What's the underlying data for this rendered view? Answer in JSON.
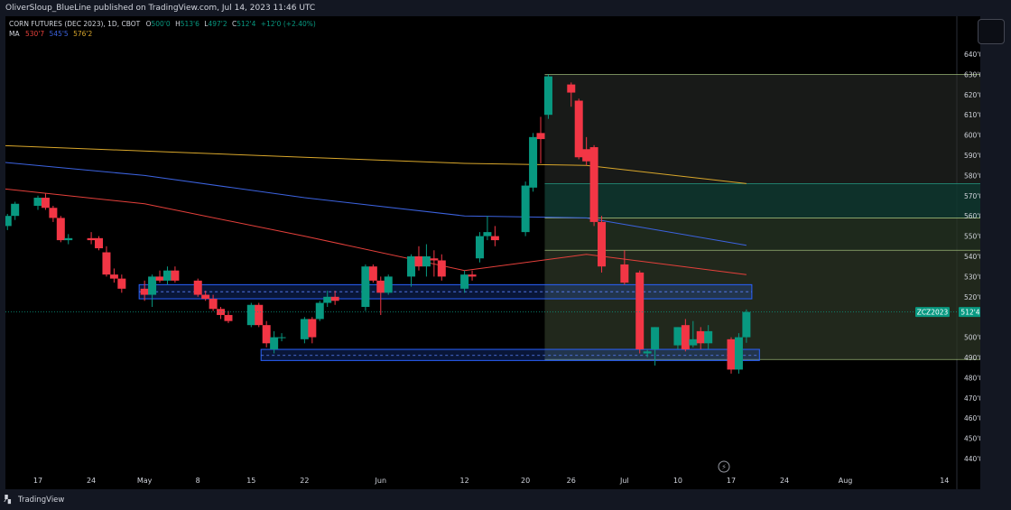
{
  "header": {
    "publisher_line": "OliverSloup_BlueLine published on TradingView.com, Jul 14, 2023 11:46 UTC"
  },
  "legend": {
    "symbol": "CORN FUTURES (DEC 2023), 1D, CBOT",
    "ohlc": {
      "open_label": "O",
      "open": "500'0",
      "high_label": "H",
      "high": "513'6",
      "low_label": "L",
      "low": "497'2",
      "close_label": "C",
      "close": "512'4",
      "change": "+12'0 (+2.40%)"
    },
    "ma_label": "MA",
    "ma_values": [
      "530'7",
      "545'5",
      "576'2"
    ]
  },
  "colors": {
    "up": "#089981",
    "down": "#f23645",
    "ma1": "#e5403b",
    "ma2": "#3c63e0",
    "ma3": "#d9a72b",
    "zone_blue": "#2962ff",
    "background": "#000000"
  },
  "price_badge": {
    "symbol": "ZCZ2023",
    "price": "512'4"
  },
  "footer": {
    "brand": "TradingView"
  },
  "chart_data": {
    "type": "candlestick",
    "y_unit": "cents per bushel",
    "ylim": [
      432,
      642
    ],
    "y_ticks": [
      440,
      450,
      460,
      470,
      480,
      490,
      500,
      510,
      520,
      530,
      540,
      550,
      560,
      570,
      580,
      590,
      600,
      610,
      620,
      630,
      640
    ],
    "y_tick_labels": [
      "440'0",
      "450'0",
      "460'0",
      "470'0",
      "480'0",
      "490'0",
      "500'0",
      "510'0",
      "520'0",
      "530'0",
      "540'0",
      "550'0",
      "560'0",
      "570'0",
      "580'0",
      "590'0",
      "600'0",
      "610'0",
      "620'0",
      "630'0",
      "640'0"
    ],
    "x_tick_labels": [
      {
        "label": "17",
        "date": "2023-04-17"
      },
      {
        "label": "24",
        "date": "2023-04-24"
      },
      {
        "label": "May",
        "date": "2023-05-01"
      },
      {
        "label": "8",
        "date": "2023-05-08"
      },
      {
        "label": "15",
        "date": "2023-05-15"
      },
      {
        "label": "22",
        "date": "2023-05-22"
      },
      {
        "label": "Jun",
        "date": "2023-06-01"
      },
      {
        "label": "12",
        "date": "2023-06-12"
      },
      {
        "label": "20",
        "date": "2023-06-20"
      },
      {
        "label": "26",
        "date": "2023-06-26"
      },
      {
        "label": "Jul",
        "date": "2023-07-03"
      },
      {
        "label": "10",
        "date": "2023-07-10"
      },
      {
        "label": "17",
        "date": "2023-07-17"
      },
      {
        "label": "24",
        "date": "2023-07-24"
      },
      {
        "label": "Aug",
        "date": "2023-08-01"
      },
      {
        "label": "14",
        "date": "2023-08-14"
      }
    ],
    "candles": [
      {
        "d": "2023-04-11",
        "o": 556,
        "h": 559,
        "l": 552,
        "c": 554
      },
      {
        "d": "2023-04-12",
        "o": 554,
        "h": 556,
        "l": 551,
        "c": 555
      },
      {
        "d": "2023-04-13",
        "o": 555,
        "h": 561,
        "l": 553,
        "c": 560
      },
      {
        "d": "2023-04-14",
        "o": 560,
        "h": 567,
        "l": 558,
        "c": 566
      },
      {
        "d": "2023-04-17",
        "o": 565,
        "h": 570,
        "l": 563,
        "c": 569
      },
      {
        "d": "2023-04-18",
        "o": 569,
        "h": 571,
        "l": 563,
        "c": 564
      },
      {
        "d": "2023-04-19",
        "o": 564,
        "h": 565,
        "l": 557,
        "c": 559
      },
      {
        "d": "2023-04-20",
        "o": 559,
        "h": 560,
        "l": 547,
        "c": 548
      },
      {
        "d": "2023-04-21",
        "o": 548,
        "h": 551,
        "l": 546,
        "c": 549
      },
      {
        "d": "2023-04-24",
        "o": 549,
        "h": 552,
        "l": 546,
        "c": 548
      },
      {
        "d": "2023-04-25",
        "o": 549,
        "h": 550,
        "l": 543,
        "c": 544
      },
      {
        "d": "2023-04-26",
        "o": 542,
        "h": 545,
        "l": 530,
        "c": 531
      },
      {
        "d": "2023-04-27",
        "o": 531,
        "h": 534,
        "l": 527,
        "c": 529
      },
      {
        "d": "2023-04-28",
        "o": 529,
        "h": 531,
        "l": 522,
        "c": 524
      },
      {
        "d": "2023-05-01",
        "o": 524,
        "h": 528,
        "l": 518,
        "c": 521
      },
      {
        "d": "2023-05-02",
        "o": 521,
        "h": 531,
        "l": 515,
        "c": 530
      },
      {
        "d": "2023-05-03",
        "o": 530,
        "h": 533,
        "l": 527,
        "c": 528
      },
      {
        "d": "2023-05-04",
        "o": 528,
        "h": 535,
        "l": 526,
        "c": 533
      },
      {
        "d": "2023-05-05",
        "o": 533,
        "h": 535,
        "l": 527,
        "c": 528
      },
      {
        "d": "2023-05-08",
        "o": 528,
        "h": 529,
        "l": 520,
        "c": 521
      },
      {
        "d": "2023-05-09",
        "o": 521,
        "h": 523,
        "l": 518,
        "c": 519
      },
      {
        "d": "2023-05-10",
        "o": 519,
        "h": 521,
        "l": 513,
        "c": 514
      },
      {
        "d": "2023-05-11",
        "o": 514,
        "h": 515,
        "l": 509,
        "c": 511
      },
      {
        "d": "2023-05-12",
        "o": 511,
        "h": 513,
        "l": 507,
        "c": 508
      },
      {
        "d": "2023-05-15",
        "o": 506,
        "h": 517,
        "l": 505,
        "c": 516
      },
      {
        "d": "2023-05-16",
        "o": 516,
        "h": 517,
        "l": 505,
        "c": 506
      },
      {
        "d": "2023-05-17",
        "o": 506,
        "h": 508,
        "l": 495,
        "c": 497
      },
      {
        "d": "2023-05-18",
        "o": 494,
        "h": 503,
        "l": 492,
        "c": 500
      },
      {
        "d": "2023-05-19",
        "o": 500,
        "h": 502,
        "l": 498,
        "c": 500
      },
      {
        "d": "2023-05-22",
        "o": 499,
        "h": 510,
        "l": 497,
        "c": 509
      },
      {
        "d": "2023-05-23",
        "o": 509,
        "h": 510,
        "l": 497,
        "c": 500
      },
      {
        "d": "2023-05-24",
        "o": 509,
        "h": 518,
        "l": 508,
        "c": 517
      },
      {
        "d": "2023-05-25",
        "o": 517,
        "h": 523,
        "l": 515,
        "c": 520
      },
      {
        "d": "2023-05-26",
        "o": 520,
        "h": 523,
        "l": 516,
        "c": 518
      },
      {
        "d": "2023-05-30",
        "o": 515,
        "h": 536,
        "l": 513,
        "c": 535
      },
      {
        "d": "2023-05-31",
        "o": 535,
        "h": 536,
        "l": 527,
        "c": 528
      },
      {
        "d": "2023-06-01",
        "o": 528,
        "h": 530,
        "l": 511,
        "c": 522
      },
      {
        "d": "2023-06-02",
        "o": 522,
        "h": 531,
        "l": 521,
        "c": 530
      },
      {
        "d": "2023-06-05",
        "o": 530,
        "h": 541,
        "l": 525,
        "c": 540
      },
      {
        "d": "2023-06-06",
        "o": 540,
        "h": 545,
        "l": 533,
        "c": 535
      },
      {
        "d": "2023-06-07",
        "o": 535,
        "h": 546,
        "l": 530,
        "c": 540
      },
      {
        "d": "2023-06-08",
        "o": 539,
        "h": 543,
        "l": 530,
        "c": 538
      },
      {
        "d": "2023-06-09",
        "o": 538,
        "h": 541,
        "l": 528,
        "c": 530
      },
      {
        "d": "2023-06-12",
        "o": 524,
        "h": 533,
        "l": 522,
        "c": 531
      },
      {
        "d": "2023-06-13",
        "o": 531,
        "h": 533,
        "l": 528,
        "c": 530
      },
      {
        "d": "2023-06-14",
        "o": 539,
        "h": 552,
        "l": 537,
        "c": 550
      },
      {
        "d": "2023-06-15",
        "o": 550,
        "h": 560,
        "l": 548,
        "c": 552
      },
      {
        "d": "2023-06-16",
        "o": 550,
        "h": 555,
        "l": 545,
        "c": 548
      },
      {
        "d": "2023-06-20",
        "o": 552,
        "h": 577,
        "l": 550,
        "c": 575
      },
      {
        "d": "2023-06-21",
        "o": 574,
        "h": 601,
        "l": 572,
        "c": 599
      },
      {
        "d": "2023-06-22",
        "o": 601,
        "h": 609,
        "l": 586,
        "c": 598
      },
      {
        "d": "2023-06-23",
        "o": 610,
        "h": 630,
        "l": 608,
        "c": 629
      },
      {
        "d": "2023-06-26",
        "o": 625,
        "h": 626,
        "l": 614,
        "c": 621
      },
      {
        "d": "2023-06-27",
        "o": 617,
        "h": 618,
        "l": 588,
        "c": 589
      },
      {
        "d": "2023-06-28",
        "o": 593,
        "h": 599,
        "l": 585,
        "c": 587
      },
      {
        "d": "2023-06-29",
        "o": 594,
        "h": 595,
        "l": 555,
        "c": 557
      },
      {
        "d": "2023-06-30",
        "o": 557,
        "h": 560,
        "l": 532,
        "c": 535
      },
      {
        "d": "2023-07-03",
        "o": 536,
        "h": 543,
        "l": 526,
        "c": 527
      },
      {
        "d": "2023-07-05",
        "o": 532,
        "h": 533,
        "l": 492,
        "c": 494
      },
      {
        "d": "2023-07-06",
        "o": 492,
        "h": 494,
        "l": 490,
        "c": 493
      },
      {
        "d": "2023-07-07",
        "o": 494,
        "h": 505,
        "l": 486,
        "c": 505
      },
      {
        "d": "2023-07-10",
        "o": 496,
        "h": 505,
        "l": 494,
        "c": 505
      },
      {
        "d": "2023-07-11",
        "o": 506,
        "h": 509,
        "l": 493,
        "c": 494
      },
      {
        "d": "2023-07-12",
        "o": 496,
        "h": 508,
        "l": 495,
        "c": 499
      },
      {
        "d": "2023-07-13",
        "o": 503,
        "h": 505,
        "l": 494,
        "c": 497
      },
      {
        "d": "2023-07-14",
        "o": 497,
        "h": 506,
        "l": 494,
        "c": 503
      },
      {
        "d": "2023-07-17",
        "o": 499,
        "h": 500,
        "l": 482,
        "c": 484
      },
      {
        "d": "2023-07-18",
        "o": 484,
        "h": 502,
        "l": 482,
        "c": 500
      },
      {
        "d": "2023-07-19",
        "o": 500,
        "h": 513.75,
        "l": 497.25,
        "c": 512.5
      }
    ],
    "moving_averages": [
      {
        "name": "MA 530'7",
        "color": "#e5403b",
        "points": [
          [
            "2023-04-11",
            574
          ],
          [
            "2023-05-01",
            566
          ],
          [
            "2023-05-22",
            550
          ],
          [
            "2023-06-12",
            533
          ],
          [
            "2023-06-28",
            541
          ],
          [
            "2023-07-19",
            531
          ]
        ]
      },
      {
        "name": "MA 545'5",
        "color": "#3c63e0",
        "points": [
          [
            "2023-04-11",
            587
          ],
          [
            "2023-05-01",
            580
          ],
          [
            "2023-05-22",
            569
          ],
          [
            "2023-06-12",
            560
          ],
          [
            "2023-06-28",
            559
          ],
          [
            "2023-07-19",
            545.5
          ]
        ]
      },
      {
        "name": "MA 576'2",
        "color": "#d9a72b",
        "points": [
          [
            "2023-04-11",
            595
          ],
          [
            "2023-05-22",
            589
          ],
          [
            "2023-06-12",
            586
          ],
          [
            "2023-06-28",
            585
          ],
          [
            "2023-07-19",
            576
          ]
        ]
      }
    ],
    "support_zones": [
      {
        "low": 519,
        "high": 526,
        "start": "2023-05-01",
        "end": "2023-07-19",
        "mid": 522.5
      },
      {
        "low": 488.5,
        "high": 494,
        "start": "2023-05-17",
        "end": "2023-07-20",
        "mid": 491
      }
    ],
    "fib_box": {
      "start": "2023-06-23",
      "end": "2023-08-20",
      "top": 630,
      "bottom": 489,
      "levels": [
        630,
        576,
        559,
        543,
        489
      ]
    },
    "last_price": 512.5
  }
}
